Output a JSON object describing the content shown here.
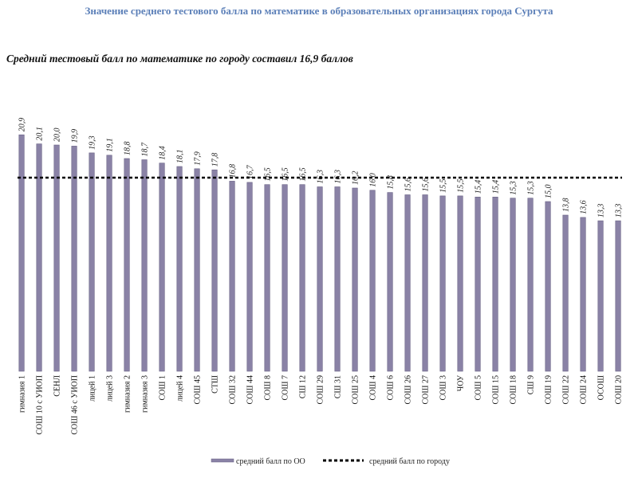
{
  "header": {
    "title": "Значение среднего тестового балла по математике в образовательных организациях города Сургута"
  },
  "colors": {
    "title": "#5b7fb8",
    "bar": "#8a82a6",
    "bar_dark": "#6a6386",
    "city_line": "#000000"
  },
  "chart_data": {
    "type": "bar",
    "title": "Средний тестовый балл по математике по городу составил 16,9 баллов",
    "categories": [
      "гимназия 1",
      "СОШ 10 с УИОП",
      "СЕНЛ",
      "СОШ 46 с УИОП",
      "лицей 1",
      "лицей 3",
      "гимназия 2",
      "гимназия 3",
      "СОШ 1",
      "лицей 4",
      "СОШ 45",
      "СТШ",
      "СОШ 32",
      "СОШ 44",
      "СОШ 8",
      "СОШ 7",
      "СШ 12",
      "СОШ 29",
      "СШ 31",
      "СОШ 25",
      "СОШ 4",
      "СОШ 6",
      "СОШ 26",
      "СОШ 27",
      "СОШ 3",
      "ЧОУ",
      "СОШ 5",
      "СОШ 15",
      "СОШ 18",
      "СШ 9",
      "СОШ 19",
      "СОШ 22",
      "СОШ 24",
      "ОСОШ",
      "СОШ 20"
    ],
    "series": [
      {
        "name": "средний балл по ОО",
        "values": [
          20.9,
          20.1,
          20.0,
          19.9,
          19.3,
          19.1,
          18.8,
          18.7,
          18.4,
          18.1,
          17.9,
          17.8,
          16.8,
          16.7,
          16.5,
          16.5,
          16.5,
          16.3,
          16.3,
          16.2,
          16.0,
          15.8,
          15.6,
          15.6,
          15.5,
          15.5,
          15.4,
          15.4,
          15.3,
          15.3,
          15.0,
          13.8,
          13.6,
          13.3,
          13.3
        ],
        "labels": [
          "20,9",
          "20,1",
          "20,0",
          "19,9",
          "19,3",
          "19,1",
          "18,8",
          "18,7",
          "18,4",
          "18,1",
          "17,9",
          "17,8",
          "16,8",
          "16,7",
          "16,5",
          "16,5",
          "16,5",
          "16,3",
          "16,3",
          "16,2",
          "16,0",
          "15,8",
          "15,6",
          "15,6",
          "15,5",
          "15,5",
          "15,4",
          "15,4",
          "15,3",
          "15,3",
          "15,0",
          "13,8",
          "13,6",
          "13,3",
          "13,3"
        ]
      }
    ],
    "reference_line": {
      "name": "средний балл по городу",
      "value": 16.9
    },
    "ylim": [
      0,
      21
    ],
    "grid": false,
    "legend": "bottom"
  }
}
